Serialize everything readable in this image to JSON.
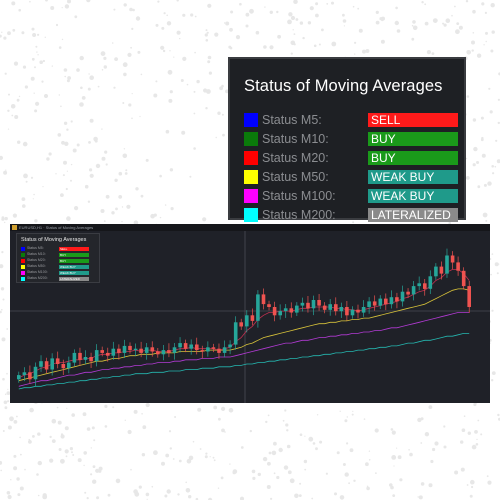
{
  "panel": {
    "title": "Status of Moving Averages",
    "rows": [
      {
        "label": "Status M5:",
        "value": "SELL",
        "swatch": "#0000ff",
        "value_bg": "#ff1a1a"
      },
      {
        "label": "Status M10:",
        "value": "BUY",
        "swatch": "#0a7a0a",
        "value_bg": "#1a9a1a"
      },
      {
        "label": "Status M20:",
        "value": "BUY",
        "swatch": "#ff0000",
        "value_bg": "#1a9a1a"
      },
      {
        "label": "Status M50:",
        "value": "WEAK BUY",
        "swatch": "#ffff00",
        "value_bg": "#1f9a8a"
      },
      {
        "label": "Status M100:",
        "value": "WEAK BUY",
        "swatch": "#ff00ff",
        "value_bg": "#1f9a8a"
      },
      {
        "label": "Status M200:",
        "value": "LATERALIZED",
        "swatch": "#00ffff",
        "value_bg": "#8a8a8a"
      }
    ]
  },
  "chart": {
    "window_title": "EURUSD,H1 · Status of Moving Averages",
    "colors": {
      "up": "#26a69a",
      "down": "#ef5350",
      "background": "#1f2128"
    },
    "chart_data": {
      "type": "candlestick",
      "close": [
        1.0,
        1.2,
        0.7,
        1.6,
        2.0,
        1.4,
        2.2,
        1.8,
        1.5,
        1.9,
        2.6,
        2.1,
        2.3,
        2.0,
        2.8,
        2.6,
        2.4,
        2.9,
        2.6,
        3.1,
        2.8,
        2.9,
        2.6,
        3.0,
        2.7,
        2.5,
        2.8,
        2.6,
        3.0,
        3.3,
        2.9,
        3.2,
        2.8,
        2.7,
        3.0,
        2.9,
        2.6,
        3.0,
        3.2,
        4.8,
        4.5,
        5.3,
        4.9,
        6.8,
        6.1,
        5.9,
        5.3,
        5.6,
        5.8,
        5.5,
        6.0,
        6.2,
        5.8,
        6.4,
        6.0,
        5.7,
        6.1,
        5.6,
        5.9,
        5.3,
        5.7,
        5.5,
        5.9,
        6.3,
        6.0,
        6.5,
        6.1,
        6.6,
        6.3,
        7.0,
        6.8,
        7.4,
        7.6,
        7.2,
        8.1,
        8.8,
        8.3,
        9.6,
        9.1,
        8.5,
        7.4,
        5.9
      ],
      "ma_fast": [
        0.8,
        1.0,
        1.1,
        1.3,
        1.5,
        1.6,
        1.8,
        1.9,
        1.9,
        2.0,
        2.1,
        2.1,
        2.2,
        2.2,
        2.4,
        2.5,
        2.5,
        2.6,
        2.6,
        2.7,
        2.7,
        2.8,
        2.7,
        2.8,
        2.8,
        2.7,
        2.7,
        2.7,
        2.8,
        2.9,
        2.9,
        3.0,
        2.9,
        2.9,
        2.9,
        2.9,
        2.8,
        2.9,
        3.0,
        3.4,
        3.7,
        4.2,
        4.5,
        5.0,
        5.3,
        5.5,
        5.5,
        5.6,
        5.6,
        5.6,
        5.7,
        5.8,
        5.8,
        5.9,
        5.9,
        5.9,
        5.9,
        5.8,
        5.8,
        5.7,
        5.7,
        5.6,
        5.7,
        5.8,
        5.9,
        6.0,
        6.1,
        6.2,
        6.3,
        6.5,
        6.6,
        6.8,
        7.0,
        7.1,
        7.4,
        7.8,
        8.0,
        8.4,
        8.6,
        8.6,
        8.3,
        7.8
      ],
      "ma_mid": [
        0.6,
        0.7,
        0.8,
        0.9,
        1.0,
        1.1,
        1.2,
        1.3,
        1.4,
        1.5,
        1.6,
        1.7,
        1.8,
        1.9,
        2.0,
        2.0,
        2.1,
        2.2,
        2.2,
        2.3,
        2.4,
        2.4,
        2.5,
        2.5,
        2.5,
        2.6,
        2.6,
        2.6,
        2.6,
        2.7,
        2.7,
        2.7,
        2.7,
        2.7,
        2.8,
        2.8,
        2.8,
        2.8,
        2.8,
        2.9,
        3.0,
        3.2,
        3.3,
        3.5,
        3.7,
        3.8,
        3.9,
        4.0,
        4.1,
        4.2,
        4.3,
        4.4,
        4.5,
        4.6,
        4.7,
        4.7,
        4.8,
        4.8,
        4.9,
        4.9,
        5.0,
        5.0,
        5.1,
        5.1,
        5.2,
        5.3,
        5.4,
        5.5,
        5.6,
        5.7,
        5.8,
        5.9,
        6.0,
        6.1,
        6.3,
        6.5,
        6.7,
        6.9,
        7.1,
        7.2,
        7.2,
        7.1
      ],
      "ma_slow": [
        0.2,
        0.3,
        0.4,
        0.5,
        0.6,
        0.6,
        0.7,
        0.8,
        0.9,
        1.0,
        1.0,
        1.1,
        1.2,
        1.2,
        1.3,
        1.4,
        1.4,
        1.5,
        1.5,
        1.6,
        1.6,
        1.7,
        1.7,
        1.8,
        1.8,
        1.9,
        1.9,
        1.9,
        2.0,
        2.0,
        2.1,
        2.1,
        2.1,
        2.2,
        2.2,
        2.2,
        2.3,
        2.3,
        2.3,
        2.4,
        2.5,
        2.6,
        2.7,
        2.8,
        2.9,
        3.0,
        3.1,
        3.2,
        3.3,
        3.3,
        3.4,
        3.5,
        3.5,
        3.6,
        3.7,
        3.7,
        3.8,
        3.8,
        3.9,
        3.9,
        4.0,
        4.0,
        4.1,
        4.1,
        4.2,
        4.2,
        4.3,
        4.4,
        4.4,
        4.5,
        4.6,
        4.7,
        4.8,
        4.9,
        5.0,
        5.1,
        5.2,
        5.3,
        5.4,
        5.5,
        5.5,
        5.5
      ],
      "ma_long": [
        0.0,
        0.1,
        0.1,
        0.2,
        0.2,
        0.3,
        0.3,
        0.4,
        0.4,
        0.5,
        0.5,
        0.6,
        0.6,
        0.7,
        0.7,
        0.8,
        0.8,
        0.9,
        0.9,
        1.0,
        1.0,
        1.1,
        1.1,
        1.1,
        1.2,
        1.2,
        1.2,
        1.3,
        1.3,
        1.3,
        1.4,
        1.4,
        1.4,
        1.5,
        1.5,
        1.5,
        1.6,
        1.6,
        1.6,
        1.7,
        1.7,
        1.8,
        1.8,
        1.9,
        1.9,
        2.0,
        2.0,
        2.1,
        2.1,
        2.2,
        2.2,
        2.3,
        2.3,
        2.4,
        2.4,
        2.5,
        2.5,
        2.6,
        2.6,
        2.7,
        2.7,
        2.8,
        2.8,
        2.9,
        2.9,
        3.0,
        3.0,
        3.1,
        3.1,
        3.2,
        3.3,
        3.3,
        3.4,
        3.5,
        3.5,
        3.6,
        3.7,
        3.8,
        3.8,
        3.9,
        4.0,
        4.0
      ],
      "series_colors": {
        "ma_fast": "#c03050",
        "ma_mid": "#d7c23a",
        "ma_slow": "#b23ad4",
        "ma_long": "#25b7b0"
      },
      "ylim": [
        -0.5,
        11
      ],
      "grid": false
    }
  }
}
